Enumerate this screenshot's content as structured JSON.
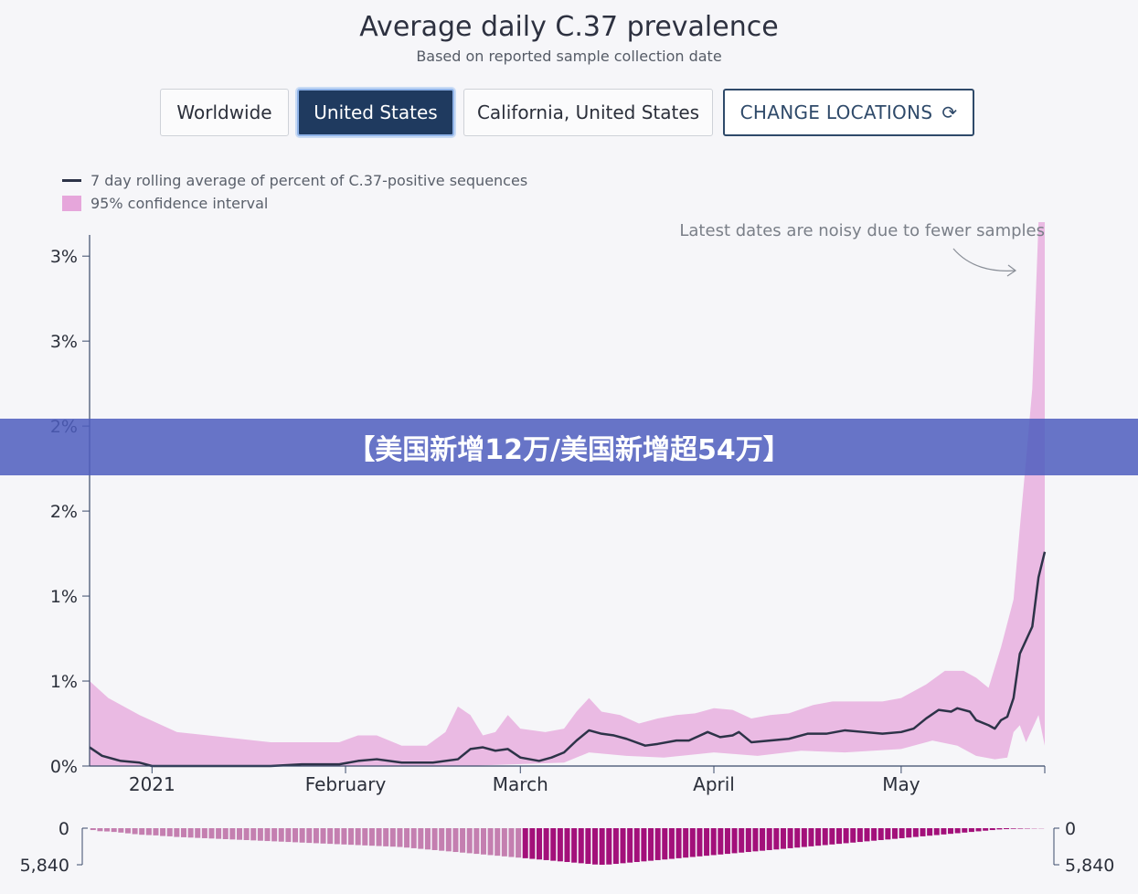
{
  "header": {
    "title": "Average daily C.37 prevalence",
    "subtitle": "Based on reported sample collection date"
  },
  "locations": {
    "worldwide": "Worldwide",
    "united_states": "United States",
    "california": "California, United States",
    "change": "CHANGE LOCATIONS"
  },
  "legend": {
    "line": "7 day rolling average of percent of C.37-positive sequences",
    "band": "95% confidence interval"
  },
  "annotation": "Latest dates are noisy due to fewer samples",
  "banner": "【美国新增12万/美国新增超54万】",
  "colors": {
    "line": "#2d3348",
    "band": "#e6a6db",
    "bar": "#a3107a",
    "bar_light": "#c47fb0",
    "active_button": "#1f3a5f"
  },
  "chart_data": {
    "type": "line",
    "x_start": "2020-12-22",
    "x_end": "2021-05-24",
    "yticks": [
      0,
      0.5,
      1.0,
      1.5,
      2.0,
      2.5,
      3.0
    ],
    "ytick_labels": [
      "0%",
      "1%",
      "1%",
      "2%",
      "2%",
      "3%",
      "3%"
    ],
    "ylim": [
      0,
      3.2
    ],
    "xticks": [
      {
        "date": "2021-01-01",
        "label": "2021"
      },
      {
        "date": "2021-02-01",
        "label": "February"
      },
      {
        "date": "2021-03-01",
        "label": "March"
      },
      {
        "date": "2021-04-01",
        "label": "April"
      },
      {
        "date": "2021-05-01",
        "label": "May"
      }
    ],
    "line_points": [
      [
        "2020-12-22",
        0.11
      ],
      [
        "2020-12-24",
        0.06
      ],
      [
        "2020-12-27",
        0.03
      ],
      [
        "2020-12-30",
        0.02
      ],
      [
        "2021-01-01",
        0.0
      ],
      [
        "2021-01-10",
        0.0
      ],
      [
        "2021-01-20",
        0.0
      ],
      [
        "2021-01-25",
        0.01
      ],
      [
        "2021-01-31",
        0.01
      ],
      [
        "2021-02-03",
        0.03
      ],
      [
        "2021-02-06",
        0.04
      ],
      [
        "2021-02-10",
        0.02
      ],
      [
        "2021-02-15",
        0.02
      ],
      [
        "2021-02-19",
        0.04
      ],
      [
        "2021-02-21",
        0.1
      ],
      [
        "2021-02-23",
        0.11
      ],
      [
        "2021-02-25",
        0.09
      ],
      [
        "2021-02-27",
        0.1
      ],
      [
        "2021-03-01",
        0.05
      ],
      [
        "2021-03-04",
        0.03
      ],
      [
        "2021-03-06",
        0.05
      ],
      [
        "2021-03-08",
        0.08
      ],
      [
        "2021-03-10",
        0.15
      ],
      [
        "2021-03-12",
        0.21
      ],
      [
        "2021-03-14",
        0.19
      ],
      [
        "2021-03-16",
        0.18
      ],
      [
        "2021-03-18",
        0.16
      ],
      [
        "2021-03-21",
        0.12
      ],
      [
        "2021-03-23",
        0.13
      ],
      [
        "2021-03-26",
        0.15
      ],
      [
        "2021-03-28",
        0.15
      ],
      [
        "2021-03-31",
        0.2
      ],
      [
        "2021-04-02",
        0.17
      ],
      [
        "2021-04-04",
        0.18
      ],
      [
        "2021-04-05",
        0.2
      ],
      [
        "2021-04-07",
        0.14
      ],
      [
        "2021-04-10",
        0.15
      ],
      [
        "2021-04-13",
        0.16
      ],
      [
        "2021-04-16",
        0.19
      ],
      [
        "2021-04-19",
        0.19
      ],
      [
        "2021-04-22",
        0.21
      ],
      [
        "2021-04-25",
        0.2
      ],
      [
        "2021-04-28",
        0.19
      ],
      [
        "2021-05-01",
        0.2
      ],
      [
        "2021-05-03",
        0.22
      ],
      [
        "2021-05-05",
        0.28
      ],
      [
        "2021-05-07",
        0.33
      ],
      [
        "2021-05-09",
        0.32
      ],
      [
        "2021-05-10",
        0.34
      ],
      [
        "2021-05-12",
        0.32
      ],
      [
        "2021-05-13",
        0.27
      ],
      [
        "2021-05-15",
        0.24
      ],
      [
        "2021-05-16",
        0.22
      ],
      [
        "2021-05-17",
        0.27
      ],
      [
        "2021-05-18",
        0.29
      ],
      [
        "2021-05-19",
        0.4
      ],
      [
        "2021-05-20",
        0.66
      ],
      [
        "2021-05-21",
        0.74
      ],
      [
        "2021-05-22",
        0.82
      ],
      [
        "2021-05-23",
        1.11
      ],
      [
        "2021-05-24",
        1.26
      ]
    ],
    "band_upper": [
      [
        "2020-12-22",
        0.5
      ],
      [
        "2020-12-25",
        0.4
      ],
      [
        "2020-12-30",
        0.3
      ],
      [
        "2021-01-05",
        0.2
      ],
      [
        "2021-01-10",
        0.18
      ],
      [
        "2021-01-20",
        0.14
      ],
      [
        "2021-01-31",
        0.14
      ],
      [
        "2021-02-03",
        0.18
      ],
      [
        "2021-02-06",
        0.18
      ],
      [
        "2021-02-10",
        0.12
      ],
      [
        "2021-02-14",
        0.12
      ],
      [
        "2021-02-17",
        0.2
      ],
      [
        "2021-02-19",
        0.35
      ],
      [
        "2021-02-21",
        0.3
      ],
      [
        "2021-02-23",
        0.18
      ],
      [
        "2021-02-25",
        0.2
      ],
      [
        "2021-02-27",
        0.3
      ],
      [
        "2021-03-01",
        0.22
      ],
      [
        "2021-03-05",
        0.2
      ],
      [
        "2021-03-08",
        0.22
      ],
      [
        "2021-03-10",
        0.32
      ],
      [
        "2021-03-12",
        0.4
      ],
      [
        "2021-03-14",
        0.32
      ],
      [
        "2021-03-17",
        0.3
      ],
      [
        "2021-03-20",
        0.25
      ],
      [
        "2021-03-23",
        0.28
      ],
      [
        "2021-03-26",
        0.3
      ],
      [
        "2021-03-29",
        0.31
      ],
      [
        "2021-04-01",
        0.34
      ],
      [
        "2021-04-04",
        0.33
      ],
      [
        "2021-04-07",
        0.28
      ],
      [
        "2021-04-10",
        0.3
      ],
      [
        "2021-04-13",
        0.31
      ],
      [
        "2021-04-17",
        0.36
      ],
      [
        "2021-04-20",
        0.38
      ],
      [
        "2021-04-24",
        0.38
      ],
      [
        "2021-04-28",
        0.38
      ],
      [
        "2021-05-01",
        0.4
      ],
      [
        "2021-05-05",
        0.48
      ],
      [
        "2021-05-08",
        0.56
      ],
      [
        "2021-05-11",
        0.56
      ],
      [
        "2021-05-13",
        0.52
      ],
      [
        "2021-05-15",
        0.46
      ],
      [
        "2021-05-17",
        0.7
      ],
      [
        "2021-05-19",
        0.98
      ],
      [
        "2021-05-20",
        1.4
      ],
      [
        "2021-05-21",
        1.8
      ],
      [
        "2021-05-22",
        2.22
      ],
      [
        "2021-05-23",
        3.2
      ],
      [
        "2021-05-24",
        3.2
      ]
    ],
    "band_lower": [
      [
        "2020-12-22",
        0.0
      ],
      [
        "2021-02-20",
        0.0
      ],
      [
        "2021-03-08",
        0.02
      ],
      [
        "2021-03-12",
        0.08
      ],
      [
        "2021-03-18",
        0.06
      ],
      [
        "2021-03-24",
        0.05
      ],
      [
        "2021-04-01",
        0.08
      ],
      [
        "2021-04-08",
        0.06
      ],
      [
        "2021-04-15",
        0.09
      ],
      [
        "2021-04-22",
        0.08
      ],
      [
        "2021-05-01",
        0.1
      ],
      [
        "2021-05-06",
        0.15
      ],
      [
        "2021-05-10",
        0.12
      ],
      [
        "2021-05-13",
        0.06
      ],
      [
        "2021-05-16",
        0.04
      ],
      [
        "2021-05-18",
        0.05
      ],
      [
        "2021-05-19",
        0.2
      ],
      [
        "2021-05-20",
        0.24
      ],
      [
        "2021-05-21",
        0.14
      ],
      [
        "2021-05-22",
        0.22
      ],
      [
        "2021-05-23",
        0.3
      ],
      [
        "2021-05-24",
        0.12
      ]
    ],
    "sample_counts": {
      "axis_labels": [
        "0",
        "5,840"
      ],
      "ylim": [
        0,
        5840
      ],
      "values": [
        300,
        480,
        520,
        600,
        700,
        820,
        950,
        1050,
        1100,
        1150,
        1250,
        1300,
        1400,
        1450,
        1500,
        1550,
        1600,
        1650,
        1700,
        1750,
        1800,
        1850,
        1900,
        1950,
        2000,
        2050,
        2100,
        2150,
        2200,
        2250,
        2300,
        2350,
        2400,
        2450,
        2500,
        2550,
        2600,
        2650,
        2700,
        2750,
        2800,
        2850,
        2900,
        2950,
        3000,
        3100,
        3200,
        3300,
        3400,
        3500,
        3600,
        3700,
        3800,
        3900,
        4000,
        4100,
        4200,
        4300,
        4400,
        4500,
        4600,
        4700,
        4800,
        4900,
        5000,
        5100,
        5200,
        5300,
        5400,
        5500,
        5600,
        5700,
        5800,
        5840,
        5800,
        5700,
        5600,
        5500,
        5400,
        5300,
        5200,
        5100,
        5000,
        4900,
        4800,
        4700,
        4600,
        4500,
        4400,
        4300,
        4200,
        4100,
        4000,
        3900,
        3800,
        3700,
        3600,
        3500,
        3400,
        3300,
        3200,
        3100,
        3000,
        2900,
        2800,
        2700,
        2600,
        2500,
        2400,
        2300,
        2200,
        2100,
        2000,
        1900,
        1800,
        1700,
        1600,
        1500,
        1400,
        1300,
        1200,
        1100,
        1000,
        900,
        800,
        700,
        600,
        500,
        400,
        300,
        200,
        150,
        100,
        80,
        60,
        40,
        30
      ]
    }
  }
}
